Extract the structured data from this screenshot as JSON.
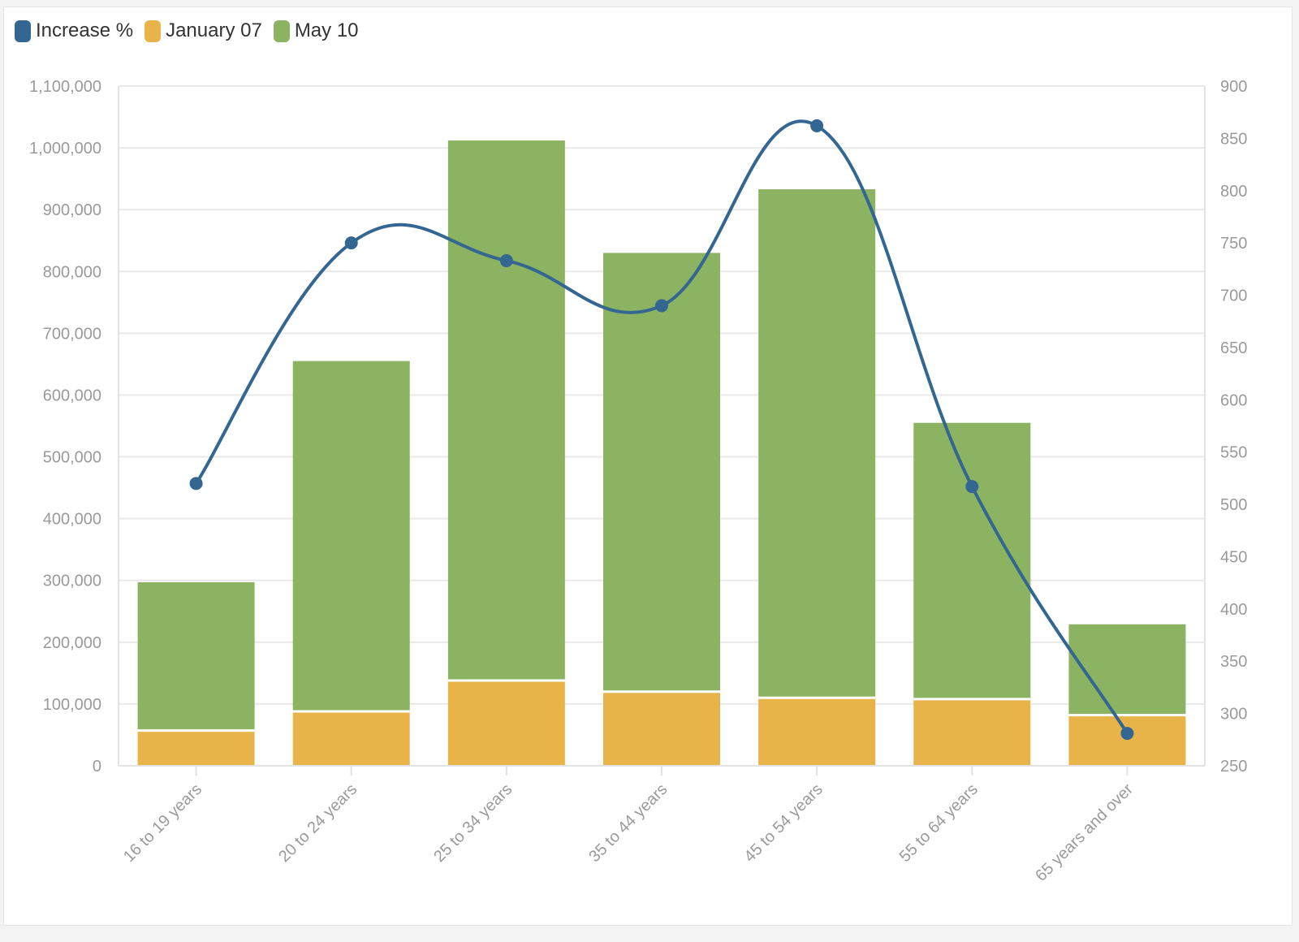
{
  "chart_data": {
    "type": "bar",
    "stacked": true,
    "categories": [
      "16 to 19 years",
      "20 to 24 years",
      "25 to 34 years",
      "35 to 44 years",
      "45 to 54 years",
      "55 to 64 years",
      "65 years and over"
    ],
    "series": [
      {
        "name": "January 07",
        "type": "bar",
        "axis": "left",
        "color": "#e8b44a",
        "values": [
          57000,
          88000,
          138000,
          120000,
          110000,
          108000,
          82000
        ]
      },
      {
        "name": "May 10",
        "type": "bar",
        "axis": "left",
        "color": "#8bb362",
        "values": [
          240000,
          567000,
          874000,
          710000,
          823000,
          447000,
          147000
        ]
      },
      {
        "name": "Increase %",
        "type": "line",
        "axis": "right",
        "color": "#336691",
        "values": [
          520,
          750,
          733,
          690,
          862,
          517,
          281
        ]
      }
    ],
    "y_left": {
      "min": 0,
      "max": 1100000,
      "ticks": [
        "0",
        "100,000",
        "200,000",
        "300,000",
        "400,000",
        "500,000",
        "600,000",
        "700,000",
        "800,000",
        "900,000",
        "1,000,000",
        "1,100,000"
      ]
    },
    "y_right": {
      "min": 250,
      "max": 900,
      "ticks": [
        "250",
        "300",
        "350",
        "400",
        "450",
        "500",
        "550",
        "600",
        "650",
        "700",
        "750",
        "800",
        "850",
        "900"
      ]
    },
    "legend": {
      "position": "top-left",
      "order": [
        "Increase %",
        "January 07",
        "May 10"
      ]
    },
    "grid": true
  }
}
